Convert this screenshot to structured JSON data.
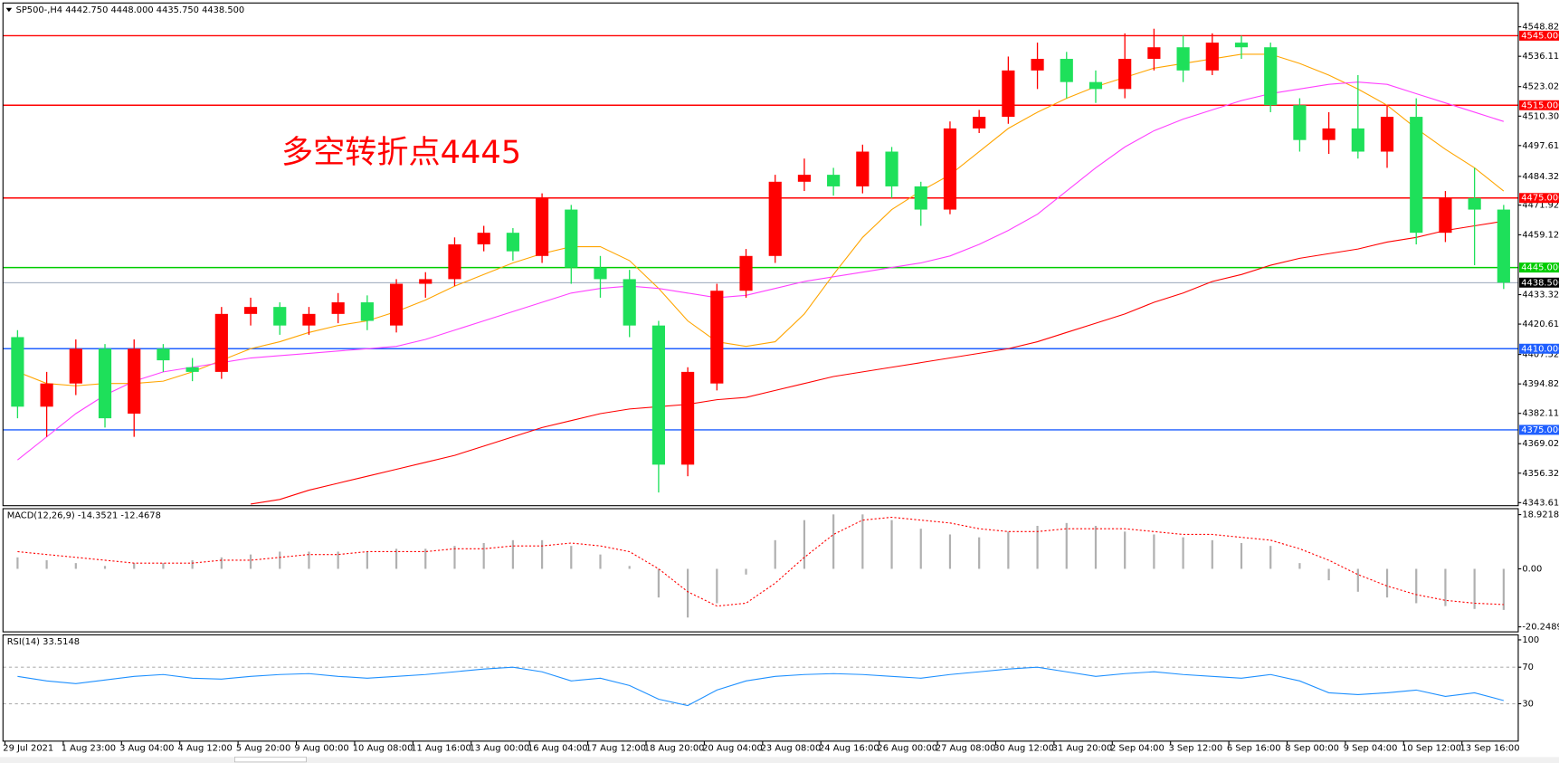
{
  "chart_data": {
    "type": "candlestick",
    "title": "SP500-,H4  4442.750 4448.000 4435.750 4438.500",
    "annotation": "多空转折点4445",
    "categories": [
      "29 Jul 2021",
      null,
      "1 Aug 23:00",
      null,
      "3 Aug 04:00",
      null,
      "4 Aug 12:00",
      null,
      "5 Aug 20:00",
      null,
      "9 Aug 00:00",
      null,
      "10 Aug 08:00",
      null,
      "11 Aug 16:00",
      null,
      "13 Aug 00:00",
      null,
      "16 Aug 04:00",
      null,
      "17 Aug 12:00",
      null,
      "18 Aug 20:00",
      null,
      "20 Aug 04:00",
      null,
      "23 Aug 08:00",
      null,
      "24 Aug 16:00",
      null,
      "26 Aug 00:00",
      null,
      "27 Aug 08:00",
      null,
      "30 Aug 12:00",
      null,
      "31 Aug 20:00",
      null,
      "2 Sep 04:00",
      null,
      "3 Sep 12:00",
      null,
      "6 Sep 16:00",
      null,
      "8 Sep 00:00",
      null,
      "9 Sep 04:00",
      null,
      "10 Sep 12:00",
      null,
      "13 Sep 16:00",
      null
    ],
    "open": [
      4415,
      4385,
      4395,
      4410,
      4382,
      4410,
      4402,
      4400,
      4425,
      4428,
      4420,
      4425,
      4430,
      4420,
      4438,
      4440,
      4455,
      4460,
      4450,
      4470,
      4445,
      4440,
      4420,
      4360,
      4395,
      4435,
      4450,
      4482,
      4485,
      4480,
      4495,
      4480,
      4470,
      4505,
      4510,
      4530,
      4535,
      4525,
      4522,
      4535,
      4540,
      4530,
      4542,
      4540,
      4515,
      4500,
      4505,
      4495,
      4510,
      4460,
      4475,
      4470
    ],
    "high": [
      4418,
      4400,
      4414,
      4412,
      4414,
      4412,
      4406,
      4428,
      4432,
      4430,
      4428,
      4434,
      4433,
      4440,
      4443,
      4458,
      4463,
      4462,
      4477,
      4472,
      4450,
      4444,
      4422,
      4402,
      4438,
      4453,
      4485,
      4492,
      4488,
      4498,
      4497,
      4482,
      4508,
      4513,
      4536,
      4542,
      4538,
      4530,
      4546,
      4548,
      4545,
      4546,
      4545,
      4542,
      4518,
      4512,
      4528,
      4515,
      4518,
      4478,
      4488,
      4472
    ],
    "low": [
      4380,
      4372,
      4390,
      4376,
      4372,
      4400,
      4396,
      4397,
      4420,
      4416,
      4416,
      4421,
      4418,
      4417,
      4432,
      4437,
      4452,
      4448,
      4447,
      4438,
      4432,
      4415,
      4348,
      4355,
      4392,
      4432,
      4447,
      4478,
      4476,
      4477,
      4475,
      4463,
      4468,
      4503,
      4507,
      4522,
      4518,
      4516,
      4518,
      4530,
      4525,
      4528,
      4535,
      4512,
      4495,
      4494,
      4492,
      4488,
      4455,
      4456,
      4446,
      4435.75
    ],
    "close": [
      4385,
      4395,
      4410,
      4380,
      4410,
      4405,
      4400,
      4425,
      4428,
      4420,
      4425,
      4430,
      4422,
      4438,
      4440,
      4455,
      4460,
      4452,
      4475,
      4445,
      4440,
      4420,
      4360,
      4400,
      4435,
      4450,
      4482,
      4485,
      4480,
      4495,
      4480,
      4470,
      4505,
      4510,
      4530,
      4535,
      4525,
      4522,
      4535,
      4540,
      4530,
      4542,
      4540,
      4515,
      4500,
      4505,
      4495,
      4510,
      4460,
      4475,
      4470,
      4438.5
    ],
    "up_color": "#ff0000",
    "down_color": "#1ee05a",
    "series": [
      {
        "color": "#ffa500",
        "values": [
          4400,
          4395,
          4394,
          4395,
          4395,
          4396,
          4400,
          4405,
          4410,
          4413,
          4417,
          4420,
          4422,
          4426,
          4431,
          4437,
          4442,
          4447,
          4451,
          4454,
          4454,
          4448,
          4436,
          4422,
          4413,
          4411,
          4413,
          4425,
          4442,
          4458,
          4470,
          4478,
          4485,
          4495,
          4505,
          4512,
          4518,
          4523,
          4527,
          4531,
          4533,
          4535,
          4537,
          4537,
          4533,
          4528,
          4522,
          4515,
          4505,
          4496,
          4488,
          4478
        ]
      },
      {
        "color": "#ff40ff",
        "values": [
          4362,
          4372,
          4382,
          4390,
          4396,
          4400,
          4402,
          4404,
          4406,
          4407,
          4408,
          4409,
          4410,
          4411,
          4414,
          4418,
          4422,
          4426,
          4430,
          4434,
          4436,
          4437,
          4436,
          4434,
          4432,
          4433,
          4436,
          4439,
          4441,
          4443,
          4445,
          4447,
          4450,
          4455,
          4461,
          4468,
          4478,
          4488,
          4497,
          4504,
          4509,
          4513,
          4517,
          4520,
          4522,
          4524,
          4525,
          4524,
          4520,
          4516,
          4512,
          4508
        ]
      },
      {
        "color": "#ff0000",
        "values": [
          null,
          null,
          null,
          null,
          null,
          null,
          null,
          null,
          4343,
          4345,
          4349,
          4352,
          4355,
          4358,
          4361,
          4364,
          4368,
          4372,
          4376,
          4379,
          4382,
          4384,
          4385,
          4386,
          4388,
          4389,
          4392,
          4395,
          4398,
          4400,
          4402,
          4404,
          4406,
          4408,
          4410,
          4413,
          4417,
          4421,
          4425,
          4430,
          4434,
          4439,
          4442,
          4446,
          4449,
          4451,
          4453,
          4456,
          4458,
          4461,
          4463,
          4465
        ]
      }
    ],
    "ylim": [
      4342.3,
      4559.1
    ],
    "yticks": [
      {
        "value": 4548.82,
        "label": "4548.820"
      },
      {
        "value": 4536.115,
        "label": "4536.115"
      },
      {
        "value": 4523.025,
        "label": "4523.025"
      },
      {
        "value": 4510.3,
        "label": "4510.300"
      },
      {
        "value": 4497.615,
        "label": "4497.615"
      },
      {
        "value": 4484.32,
        "label": "4484.320"
      },
      {
        "value": 4471.92,
        "label": "4471.920"
      },
      {
        "value": 4459.125,
        "label": "4459.125"
      },
      {
        "value": 4433.32,
        "label": "4433.320"
      },
      {
        "value": 4420.615,
        "label": "4420.615"
      },
      {
        "value": 4407.525,
        "label": "4407.525"
      },
      {
        "value": 4394.82,
        "label": "4394.820"
      },
      {
        "value": 4382.115,
        "label": "4382.115"
      },
      {
        "value": 4369.025,
        "label": "4369.025"
      },
      {
        "value": 4356.32,
        "label": "4356.320"
      },
      {
        "value": 4343.615,
        "label": "4343.615"
      }
    ],
    "levels": [
      {
        "value": 4545,
        "label": "4545.000",
        "color": "#ff0000"
      },
      {
        "value": 4515,
        "label": "4515.000",
        "color": "#ff0000"
      },
      {
        "value": 4475,
        "label": "4475.000",
        "color": "#ff0000"
      },
      {
        "value": 4445,
        "label": "4445.000",
        "color": "#00cc00"
      },
      {
        "value": 4410,
        "label": "4410.000",
        "color": "#1f5fff"
      },
      {
        "value": 4375,
        "label": "4375.000",
        "color": "#1f5fff"
      }
    ],
    "price_line": {
      "value": 4438.5,
      "label": "4438.500",
      "color": "#8a9ab0",
      "label_color": "#000000"
    },
    "macd": {
      "label": "MACD(12,26,9) -14.3521 -12.4678",
      "ylim": [
        -22,
        21
      ],
      "yticks": [
        18.9218,
        {
          "value": 0,
          "label": "0.00"
        },
        -20.2489
      ],
      "histogram": [
        4,
        3,
        2,
        1,
        2,
        2,
        3,
        4,
        5,
        6,
        6,
        6,
        6,
        7,
        7,
        8,
        9,
        10,
        10,
        8,
        5,
        1,
        -10,
        -17,
        -12,
        -2,
        10,
        17,
        19,
        19,
        17,
        14,
        12,
        11,
        13,
        15,
        16,
        15,
        13,
        12,
        11,
        10,
        9,
        8,
        2,
        -4,
        -8,
        -10,
        -12,
        -13,
        -14,
        -14.3521
      ],
      "histogram_color": "#b0b0b0",
      "signal": [
        6,
        5,
        4,
        3,
        2,
        2,
        2,
        3,
        3,
        4,
        5,
        5,
        6,
        6,
        6,
        7,
        7,
        8,
        8,
        9,
        8,
        6,
        0,
        -8,
        -13,
        -12,
        -5,
        4,
        12,
        17,
        18,
        17,
        16,
        14,
        13,
        13,
        14,
        14,
        14,
        13,
        12,
        12,
        11,
        10,
        7,
        3,
        -2,
        -6,
        -9,
        -11,
        -12,
        -12.4678
      ],
      "signal_color": "#ff0000"
    },
    "rsi": {
      "label": "RSI(14) 33.5148",
      "ylim": [
        -11,
        105.5
      ],
      "yticks": [
        100,
        70,
        30
      ],
      "levels": [
        70,
        30
      ],
      "values": [
        60,
        55,
        52,
        56,
        60,
        62,
        58,
        57,
        60,
        62,
        63,
        60,
        58,
        60,
        62,
        65,
        68,
        70,
        65,
        55,
        58,
        50,
        35,
        28,
        45,
        55,
        60,
        62,
        63,
        62,
        60,
        58,
        62,
        65,
        68,
        70,
        65,
        60,
        63,
        65,
        62,
        60,
        58,
        62,
        55,
        42,
        40,
        42,
        45,
        38,
        42,
        33.5148
      ],
      "color": "#1e90ff"
    }
  }
}
